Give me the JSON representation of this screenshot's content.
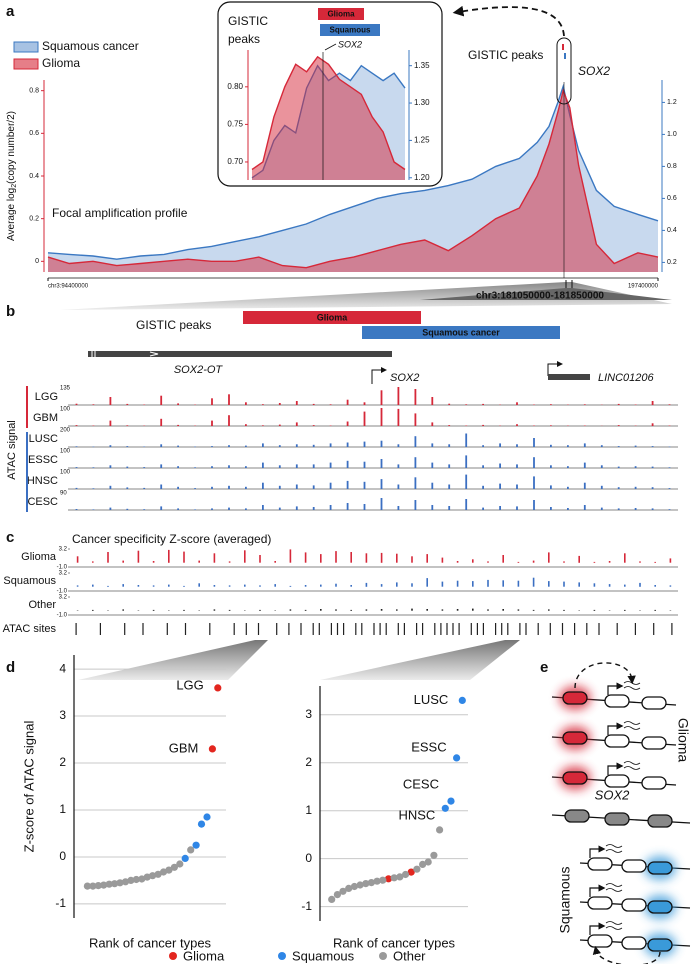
{
  "panel_labels": [
    "a",
    "b",
    "c",
    "d",
    "e"
  ],
  "chart_data": [
    {
      "type": "area",
      "x": [
        94400000,
        98000000,
        102000000,
        106000000,
        110000000,
        114000000,
        118000000,
        122000000,
        126000000,
        130000000,
        134000000,
        138000000,
        142000000,
        146000000,
        150000000,
        154000000,
        158000000,
        162000000,
        166000000,
        170000000,
        174000000,
        177000000,
        179000000,
        180500000,
        181400000,
        182500000,
        184000000,
        187000000,
        190000000,
        194000000,
        197400000
      ],
      "series": [
        {
          "name": "Squamous cancer",
          "color": "#3b78c2",
          "axis": "y2",
          "values": [
            0.26,
            0.25,
            0.24,
            0.22,
            0.24,
            0.25,
            0.28,
            0.3,
            0.33,
            0.36,
            0.4,
            0.44,
            0.5,
            0.55,
            0.6,
            0.63,
            0.65,
            0.68,
            0.72,
            0.8,
            0.85,
            0.95,
            1.05,
            1.2,
            1.3,
            1.12,
            0.9,
            0.65,
            0.55,
            0.5,
            0.46
          ]
        },
        {
          "name": "Glioma",
          "color": "#d62839",
          "values": [
            0.02,
            -0.01,
            0.0,
            -0.02,
            -0.01,
            0.0,
            0.01,
            0.0,
            0.0,
            0.02,
            -0.02,
            -0.03,
            0.0,
            0.02,
            0.05,
            0.08,
            0.1,
            0.05,
            0.12,
            0.2,
            0.25,
            0.4,
            0.55,
            0.7,
            0.8,
            0.72,
            0.45,
            0.08,
            -0.01,
            0.04,
            0.02
          ]
        }
      ],
      "xlim": [
        94400000,
        197400000
      ],
      "xticks": [
        {
          "value": 94400000,
          "label": "chr3:94400000"
        },
        197400000
      ],
      "ylim": [
        -0.05,
        0.85
      ],
      "yticks": [
        0,
        0.2,
        0.4,
        0.6,
        0.8
      ],
      "y2lim": [
        0.14,
        1.34
      ],
      "y2ticks": [
        0.2,
        0.4,
        0.6,
        0.8,
        {
          "value": 1,
          "label": "1.0"
        },
        1.2
      ],
      "ylabel": [
        "Average log",
        "2",
        "(copy number/2)"
      ],
      "profile_label": "Focal amplification profile",
      "peaks_label": "GISTIC peaks",
      "gene": "SOX2",
      "zoom_region": "chr3:181050000-181850000",
      "inset": {
        "title": [
          "GISTIC",
          "peaks"
        ],
        "gene": "SOX2",
        "series": [
          {
            "name": "Squamous",
            "color": "#3b78c2",
            "axis": "y2",
            "values": [
              1.2,
              1.21,
              1.25,
              1.27,
              1.26,
              1.32,
              1.35,
              1.33,
              1.34,
              1.33,
              1.35,
              1.34,
              1.33,
              1.34,
              1.32
            ]
          },
          {
            "name": "Glioma",
            "color": "#d62839",
            "values": [
              0.69,
              0.7,
              0.76,
              0.8,
              0.83,
              0.82,
              0.84,
              0.83,
              0.81,
              0.8,
              0.79,
              0.76,
              0.74,
              0.7,
              0.69
            ]
          }
        ],
        "ylim": [
          0.676,
          0.849
        ],
        "yticks": [
          {
            "value": 0.7,
            "label": "0.70"
          },
          0.75,
          {
            "value": 0.8,
            "label": "0.80"
          }
        ],
        "y2lim": [
          1.197,
          1.371
        ],
        "y2ticks": [
          {
            "value": 1.2,
            "label": "1.20"
          },
          1.25,
          {
            "value": 1.3,
            "label": "1.30"
          },
          1.35
        ]
      }
    },
    {
      "type": "scatter",
      "ylabel": "Z-score of ATAC signal",
      "xlabel": "Rank of cancer types",
      "xlim": [
        0,
        26.5
      ],
      "ylim": [
        -1.3,
        4.3
      ],
      "yticks": [
        -1,
        0,
        1,
        2,
        3,
        4
      ],
      "series": [
        {
          "name": "Glioma",
          "color": "#e3261f",
          "x": [
            24,
            25
          ],
          "values": [
            2.3,
            3.6
          ],
          "labels": [
            "GBM",
            "LGG"
          ]
        },
        {
          "name": "Squamous",
          "color": "#2f86e6",
          "x": [
            19,
            21,
            22,
            23
          ],
          "values": [
            -0.03,
            0.25,
            0.7,
            0.85
          ]
        },
        {
          "name": "Other",
          "color": "#9a9a9a",
          "x": [
            1,
            2,
            3,
            4,
            5,
            6,
            7,
            8,
            9,
            10,
            11,
            12,
            13,
            14,
            15,
            16,
            17,
            18,
            20
          ],
          "values": [
            -0.62,
            -0.62,
            -0.61,
            -0.6,
            -0.58,
            -0.57,
            -0.55,
            -0.53,
            -0.5,
            -0.48,
            -0.47,
            -0.43,
            -0.4,
            -0.37,
            -0.32,
            -0.28,
            -0.22,
            -0.15,
            0.15
          ]
        }
      ]
    },
    {
      "type": "scatter",
      "xlabel": "Rank of cancer types",
      "xlim": [
        0,
        25
      ],
      "ylim": [
        -1.3,
        3.6
      ],
      "yticks": [
        -1,
        0,
        1,
        2,
        3
      ],
      "series": [
        {
          "color": "#e3261f",
          "x": [
            11,
            15
          ],
          "values": [
            -0.42,
            -0.28
          ]
        },
        {
          "color": "#2f86e6",
          "x": [
            21,
            22,
            23,
            24
          ],
          "values": [
            1.05,
            1.2,
            2.1,
            3.3
          ],
          "labels": [
            "HNSC",
            "CESC",
            "ESSC",
            "LUSC"
          ]
        },
        {
          "color": "#9a9a9a",
          "x": [
            1,
            2,
            3,
            4,
            5,
            6,
            7,
            8,
            9,
            10,
            12,
            13,
            14,
            16,
            17,
            18,
            19,
            20
          ],
          "values": [
            -0.85,
            -0.75,
            -0.68,
            -0.62,
            -0.58,
            -0.55,
            -0.52,
            -0.5,
            -0.47,
            -0.45,
            -0.4,
            -0.38,
            -0.33,
            -0.22,
            -0.12,
            -0.07,
            0.07,
            0.6
          ]
        }
      ]
    }
  ],
  "panel_b": {
    "peaks_label": "GISTIC peaks",
    "peaks": [
      "Glioma",
      "Squamous cancer"
    ],
    "genes": [
      "SOX2-OT",
      "SOX2",
      "LINC01206"
    ],
    "group_label": "ATAC signal",
    "tracks": [
      {
        "name": "LGG",
        "max": 135,
        "color": "#d62839",
        "values": [
          10,
          5,
          60,
          8,
          4,
          70,
          12,
          3,
          50,
          80,
          20,
          6,
          15,
          30,
          8,
          5,
          40,
          20,
          110,
          135,
          120,
          60,
          10,
          5,
          8,
          3,
          20,
          4,
          6,
          3,
          5,
          2,
          8,
          4,
          30,
          5
        ]
      },
      {
        "name": "GBM",
        "max": 100,
        "color": "#d62839",
        "values": [
          5,
          3,
          30,
          4,
          2,
          40,
          6,
          2,
          30,
          60,
          10,
          4,
          8,
          20,
          5,
          3,
          25,
          80,
          100,
          95,
          70,
          20,
          5,
          3,
          6,
          2,
          10,
          3,
          4,
          2,
          3,
          1,
          5,
          2,
          15,
          3
        ]
      },
      {
        "name": "LUSC",
        "max": 200,
        "color": "#3b6fc2",
        "values": [
          8,
          5,
          20,
          10,
          6,
          30,
          15,
          5,
          10,
          20,
          15,
          40,
          20,
          30,
          25,
          40,
          50,
          60,
          70,
          30,
          120,
          40,
          30,
          150,
          20,
          40,
          30,
          100,
          25,
          20,
          40,
          20,
          10,
          15,
          10,
          5
        ]
      },
      {
        "name": "ESSC",
        "max": 100,
        "color": "#3b6fc2",
        "values": [
          5,
          4,
          15,
          8,
          5,
          20,
          10,
          4,
          10,
          15,
          10,
          30,
          15,
          20,
          20,
          30,
          40,
          35,
          50,
          20,
          60,
          30,
          20,
          70,
          15,
          25,
          20,
          60,
          15,
          10,
          30,
          15,
          8,
          10,
          8,
          4
        ]
      },
      {
        "name": "HNSC",
        "max": 100,
        "color": "#3b6fc2",
        "values": [
          6,
          4,
          18,
          9,
          6,
          25,
          12,
          5,
          12,
          18,
          12,
          35,
          18,
          25,
          20,
          35,
          45,
          40,
          55,
          25,
          65,
          35,
          25,
          80,
          18,
          30,
          25,
          70,
          20,
          12,
          35,
          18,
          10,
          12,
          10,
          5
        ]
      },
      {
        "name": "CESC",
        "max": 90,
        "color": "#3b6fc2",
        "values": [
          5,
          3,
          12,
          6,
          4,
          18,
          8,
          3,
          8,
          12,
          8,
          25,
          12,
          18,
          15,
          25,
          35,
          30,
          60,
          20,
          50,
          25,
          20,
          55,
          12,
          20,
          18,
          50,
          15,
          10,
          25,
          12,
          8,
          10,
          8,
          4
        ]
      }
    ]
  },
  "panel_c": {
    "title": "Cancer specificity Z-score (averaged)",
    "ylim": [
      -1,
      3.2
    ],
    "yticks": [
      3.2,
      {
        "value": -1,
        "label": "-1.0"
      }
    ],
    "tracks": [
      {
        "name": "Glioma",
        "color": "#d62839",
        "values": [
          1.5,
          0.3,
          2.5,
          0.5,
          2.8,
          0.4,
          3.0,
          2.6,
          0.5,
          2.2,
          0.3,
          2.9,
          1.8,
          0.4,
          3.1,
          2.4,
          2.0,
          2.7,
          2.5,
          2.2,
          2.3,
          2.1,
          1.5,
          2.0,
          1.2,
          0.4,
          0.8,
          0.3,
          1.8,
          0.2,
          0.5,
          2.4,
          0.3,
          1.6,
          0.2,
          0.4,
          2.2,
          0.3,
          0.2,
          1.0
        ]
      },
      {
        "name": "Squamous",
        "color": "#3b6fc2",
        "values": [
          0.3,
          0.5,
          0.2,
          0.6,
          0.4,
          0.3,
          0.5,
          0.2,
          0.8,
          0.4,
          0.3,
          0.5,
          0.3,
          0.6,
          0.2,
          0.4,
          0.5,
          0.7,
          0.4,
          0.9,
          0.6,
          1.0,
          0.8,
          2.0,
          1.2,
          1.4,
          1.3,
          1.6,
          1.5,
          1.4,
          2.1,
          1.3,
          1.2,
          1.0,
          0.8,
          0.6,
          0.5,
          0.9,
          0.4,
          0.3
        ]
      },
      {
        "name": "Other",
        "color": "#222222",
        "values": [
          0.1,
          0.2,
          0.1,
          0.3,
          0.1,
          0.2,
          0.1,
          0.2,
          0.1,
          0.3,
          0.2,
          0.1,
          0.2,
          0.1,
          0.3,
          0.2,
          0.4,
          0.3,
          0.2,
          0.3,
          0.4,
          0.3,
          0.5,
          0.4,
          0.3,
          0.4,
          0.5,
          0.3,
          0.4,
          0.3,
          0.2,
          0.3,
          0.2,
          0.1,
          0.2,
          0.1,
          0.2,
          0.1,
          0.2,
          0.1
        ]
      }
    ],
    "sites_label": "ATAC sites",
    "sites": [
      1,
      5,
      9,
      12,
      16,
      19,
      23,
      27,
      29,
      31,
      34,
      36,
      38,
      40,
      41,
      43,
      44,
      45,
      47,
      48,
      50,
      51,
      52,
      54,
      55,
      57,
      58,
      60,
      61,
      62,
      63,
      64,
      66,
      67,
      68,
      70,
      71,
      72,
      74,
      75,
      77,
      79,
      81,
      83,
      85,
      87,
      90,
      93,
      96,
      99
    ]
  },
  "panel_e": {
    "labels": [
      "Glioma",
      "SOX2",
      "Squamous"
    ]
  }
}
